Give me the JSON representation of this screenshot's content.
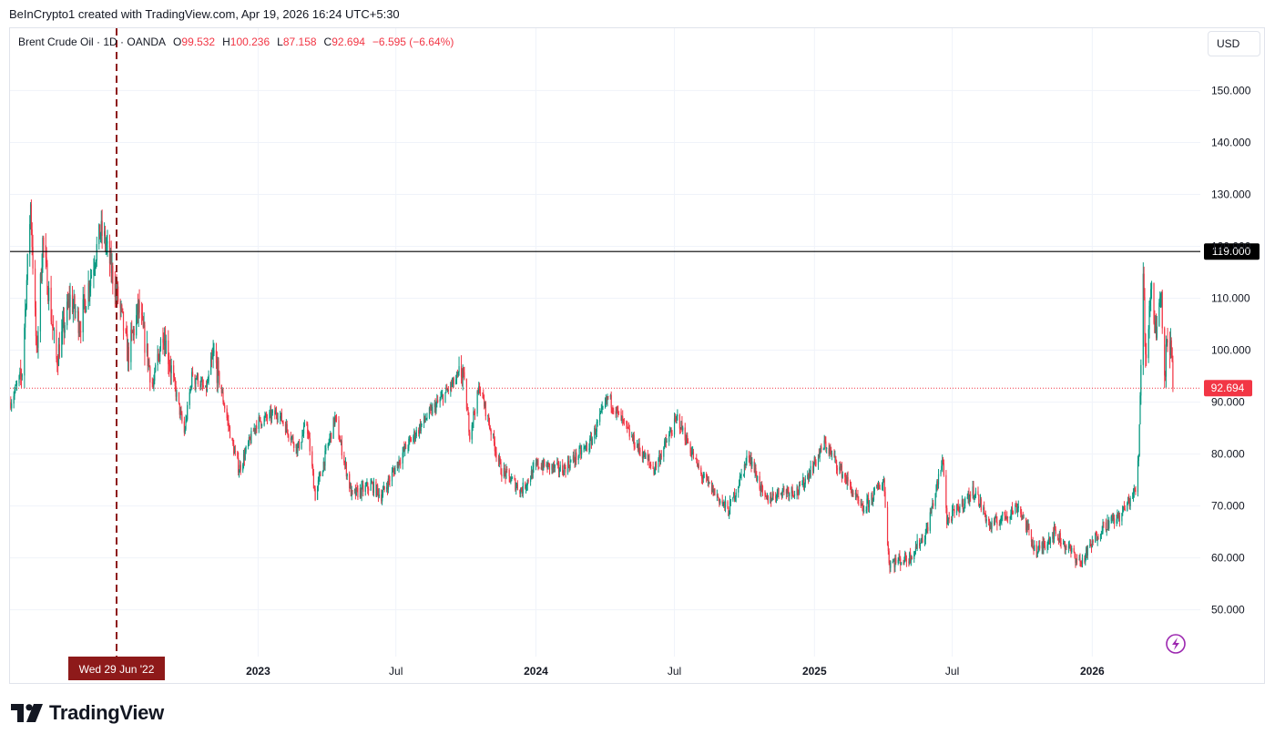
{
  "header": {
    "attribution": "BeInCrypto1 created with TradingView.com, Apr 19, 2026 16:24 UTC+5:30"
  },
  "legend": {
    "symbol": "Brent Crude Oil · 1D · OANDA",
    "o_label": "O",
    "o_value": "99.532",
    "h_label": "H",
    "h_value": "100.236",
    "l_label": "L",
    "l_value": "87.158",
    "c_label": "C",
    "c_value": "92.694",
    "change": "−6.595 (−6.64%)"
  },
  "currency": "USD",
  "crosshair_label": "Wed 29 Jun '22",
  "logo_text": "TradingView",
  "colors": {
    "up": "#089981",
    "down": "#f23645",
    "grid": "#f0f3fa",
    "crosshair": "#8e1a1a",
    "resistance": "#000000",
    "last_price": "#f23645"
  },
  "chart_data": {
    "type": "candlestick",
    "title": "",
    "timeframe": "1D",
    "y_axis": {
      "ylim": [
        41,
        162
      ],
      "ticks": [
        50,
        60,
        70,
        80,
        90,
        100,
        110,
        120,
        130,
        140,
        150
      ],
      "tick_labels": [
        "50.000",
        "60.000",
        "70.000",
        "80.000",
        "90.000",
        "100.000",
        "110.000",
        "120.000",
        "130.000",
        "140.000",
        "150.000"
      ]
    },
    "x_axis": {
      "range": [
        "2022-02-09",
        "2026-05-23"
      ],
      "ticks": [
        {
          "date": "2023-01-01",
          "label": "2023",
          "bold": true
        },
        {
          "date": "2023-07-01",
          "label": "Jul",
          "bold": false
        },
        {
          "date": "2024-01-01",
          "label": "2024",
          "bold": true
        },
        {
          "date": "2024-07-01",
          "label": "Jul",
          "bold": false
        },
        {
          "date": "2025-01-01",
          "label": "2025",
          "bold": true
        },
        {
          "date": "2025-07-01",
          "label": "Jul",
          "bold": false
        },
        {
          "date": "2026-01-01",
          "label": "2026",
          "bold": true
        }
      ]
    },
    "horizontal_line": {
      "value": 119.0,
      "label": "119.000"
    },
    "last_price": {
      "value": 92.694,
      "label": "92.694"
    },
    "crosshair": {
      "date": "2022-06-29"
    },
    "series": [
      {
        "date": "2022-02-10",
        "close": 90
      },
      {
        "date": "2022-02-25",
        "close": 96
      },
      {
        "date": "2022-03-08",
        "close": 128
      },
      {
        "date": "2022-03-16",
        "close": 99
      },
      {
        "date": "2022-03-24",
        "close": 121
      },
      {
        "date": "2022-04-11",
        "close": 98
      },
      {
        "date": "2022-04-29",
        "close": 110
      },
      {
        "date": "2022-05-12",
        "close": 105
      },
      {
        "date": "2022-06-08",
        "close": 123
      },
      {
        "date": "2022-06-14",
        "close": 121
      },
      {
        "date": "2022-07-05",
        "close": 107
      },
      {
        "date": "2022-07-14",
        "close": 99
      },
      {
        "date": "2022-07-28",
        "close": 108
      },
      {
        "date": "2022-08-16",
        "close": 93
      },
      {
        "date": "2022-08-29",
        "close": 104
      },
      {
        "date": "2022-09-26",
        "close": 84
      },
      {
        "date": "2022-10-07",
        "close": 96
      },
      {
        "date": "2022-10-24",
        "close": 92
      },
      {
        "date": "2022-11-04",
        "close": 99
      },
      {
        "date": "2022-11-28",
        "close": 82
      },
      {
        "date": "2022-12-07",
        "close": 77
      },
      {
        "date": "2022-12-30",
        "close": 86
      },
      {
        "date": "2023-01-27",
        "close": 88
      },
      {
        "date": "2023-02-22",
        "close": 81
      },
      {
        "date": "2023-03-06",
        "close": 86
      },
      {
        "date": "2023-03-17",
        "close": 72
      },
      {
        "date": "2023-04-12",
        "close": 87
      },
      {
        "date": "2023-05-04",
        "close": 72
      },
      {
        "date": "2023-05-30",
        "close": 74
      },
      {
        "date": "2023-06-12",
        "close": 72
      },
      {
        "date": "2023-07-13",
        "close": 81
      },
      {
        "date": "2023-08-10",
        "close": 87
      },
      {
        "date": "2023-09-27",
        "close": 96
      },
      {
        "date": "2023-10-06",
        "close": 84
      },
      {
        "date": "2023-10-19",
        "close": 93
      },
      {
        "date": "2023-11-16",
        "close": 77
      },
      {
        "date": "2023-12-13",
        "close": 73
      },
      {
        "date": "2024-01-03",
        "close": 78
      },
      {
        "date": "2024-02-05",
        "close": 77
      },
      {
        "date": "2024-03-12",
        "close": 82
      },
      {
        "date": "2024-04-05",
        "close": 91
      },
      {
        "date": "2024-05-06",
        "close": 83
      },
      {
        "date": "2024-06-04",
        "close": 77
      },
      {
        "date": "2024-07-05",
        "close": 87
      },
      {
        "date": "2024-08-05",
        "close": 76
      },
      {
        "date": "2024-09-10",
        "close": 69
      },
      {
        "date": "2024-10-07",
        "close": 80
      },
      {
        "date": "2024-10-28",
        "close": 71
      },
      {
        "date": "2024-11-19",
        "close": 73
      },
      {
        "date": "2024-12-12",
        "close": 73
      },
      {
        "date": "2025-01-15",
        "close": 82
      },
      {
        "date": "2025-02-12",
        "close": 75
      },
      {
        "date": "2025-03-05",
        "close": 69
      },
      {
        "date": "2025-04-02",
        "close": 75
      },
      {
        "date": "2025-04-09",
        "close": 59
      },
      {
        "date": "2025-05-05",
        "close": 60
      },
      {
        "date": "2025-05-28",
        "close": 65
      },
      {
        "date": "2025-06-19",
        "close": 79
      },
      {
        "date": "2025-06-24",
        "close": 67
      },
      {
        "date": "2025-07-30",
        "close": 73
      },
      {
        "date": "2025-08-20",
        "close": 66
      },
      {
        "date": "2025-09-26",
        "close": 70
      },
      {
        "date": "2025-10-20",
        "close": 61
      },
      {
        "date": "2025-11-12",
        "close": 65
      },
      {
        "date": "2025-12-17",
        "close": 59
      },
      {
        "date": "2026-01-14",
        "close": 66
      },
      {
        "date": "2026-02-06",
        "close": 68
      },
      {
        "date": "2026-02-27",
        "close": 73
      },
      {
        "date": "2026-03-03",
        "close": 80
      },
      {
        "date": "2026-03-09",
        "close": 116
      },
      {
        "date": "2026-03-12",
        "close": 98
      },
      {
        "date": "2026-03-19",
        "close": 112
      },
      {
        "date": "2026-03-26",
        "close": 103
      },
      {
        "date": "2026-04-01",
        "close": 113
      },
      {
        "date": "2026-04-07",
        "close": 94
      },
      {
        "date": "2026-04-09",
        "close": 104
      },
      {
        "date": "2026-04-15",
        "close": 99
      },
      {
        "date": "2026-04-17",
        "close": 92.694
      }
    ]
  }
}
